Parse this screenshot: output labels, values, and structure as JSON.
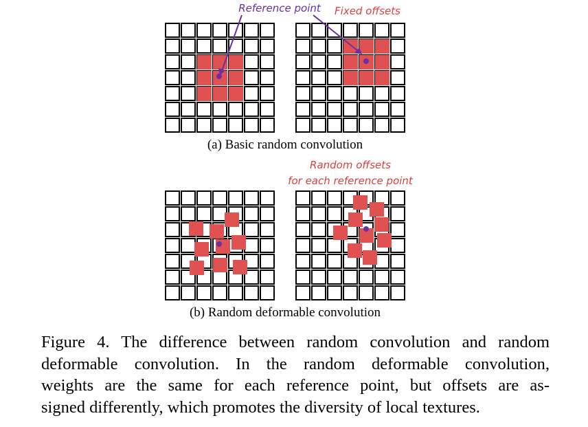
{
  "colors": {
    "grid_stroke": "#000000",
    "kernel_fill": "#e05252",
    "reference_point": "#6a2fa0",
    "reference_label": "#6a2fa0",
    "offset_label": "#d94040"
  },
  "panel_a": {
    "subcaption": "(a) Basic random convolution",
    "reference_label": "Reference point",
    "offsets_label": "Fixed offsets"
  },
  "panel_b": {
    "subcaption": "(b) Random deformable convolution",
    "offsets_label_line1": "Random offsets",
    "offsets_label_line2": "for each reference point"
  },
  "caption": {
    "lines": [
      "Figure 4. The difference between random convolution and random",
      "deformable convolution. In the random deformable convolution,",
      "weights are the same for each reference point, but offsets are as-",
      "signed differently, which promotes the diversity of local textures."
    ]
  }
}
